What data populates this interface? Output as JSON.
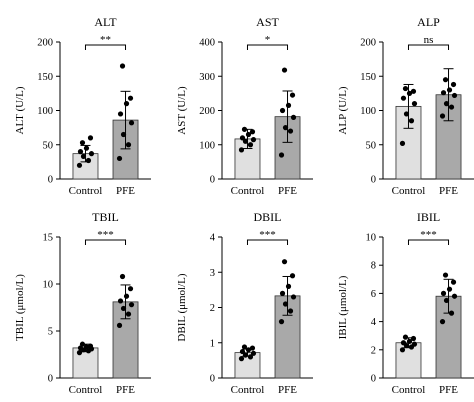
{
  "colors": {
    "control": "#e0e0e0",
    "pfe": "#a9a9a9"
  },
  "chart_data": [
    {
      "type": "bar",
      "title": "ALT",
      "ylabel": "ALT (U/L)",
      "ylim": [
        0,
        200
      ],
      "yticks": [
        0,
        50,
        100,
        150,
        200
      ],
      "categories": [
        "Control",
        "PFE"
      ],
      "means": [
        37,
        86
      ],
      "sd": [
        12,
        42
      ],
      "significance": "**",
      "points": [
        [
          20,
          27,
          33,
          37,
          40,
          45,
          60,
          53
        ],
        [
          30,
          50,
          65,
          82,
          95,
          110,
          118,
          165
        ]
      ]
    },
    {
      "type": "bar",
      "title": "AST",
      "ylabel": "AST (U/L)",
      "ylim": [
        0,
        400
      ],
      "yticks": [
        0,
        100,
        200,
        300,
        400
      ],
      "categories": [
        "Control",
        "PFE"
      ],
      "means": [
        117,
        182
      ],
      "sd": [
        28,
        75
      ],
      "significance": "*",
      "points": [
        [
          85,
          100,
          110,
          115,
          120,
          130,
          138,
          145
        ],
        [
          70,
          140,
          150,
          180,
          200,
          215,
          245,
          318
        ]
      ]
    },
    {
      "type": "bar",
      "title": "ALP",
      "ylabel": "ALP (U/L)",
      "ylim": [
        0,
        200
      ],
      "yticks": [
        0,
        50,
        100,
        150,
        200
      ],
      "categories": [
        "Control",
        "PFE"
      ],
      "means": [
        106,
        123
      ],
      "sd": [
        32,
        38
      ],
      "significance": "ns",
      "points": [
        [
          52,
          85,
          95,
          110,
          118,
          125,
          128,
          132
        ],
        [
          92,
          105,
          110,
          122,
          126,
          130,
          138,
          145
        ]
      ]
    },
    {
      "type": "bar",
      "title": "TBIL",
      "ylabel": "TBIL (μmol/L)",
      "ylim": [
        0,
        15
      ],
      "yticks": [
        0,
        5,
        10,
        15
      ],
      "categories": [
        "Control",
        "PFE"
      ],
      "means": [
        3.2,
        8.1
      ],
      "sd": [
        0.4,
        1.8
      ],
      "significance": "***",
      "points": [
        [
          2.7,
          2.9,
          3.0,
          3.1,
          3.2,
          3.3,
          3.4,
          3.6
        ],
        [
          5.6,
          6.8,
          7.4,
          7.8,
          8.2,
          8.7,
          9.5,
          10.8
        ]
      ]
    },
    {
      "type": "bar",
      "title": "DBIL",
      "ylabel": "DBIL (μmol/L)",
      "ylim": [
        0,
        4
      ],
      "yticks": [
        0,
        1,
        2,
        3,
        4
      ],
      "categories": [
        "Control",
        "PFE"
      ],
      "means": [
        0.72,
        2.33
      ],
      "sd": [
        0.1,
        0.55
      ],
      "significance": "***",
      "points": [
        [
          0.55,
          0.6,
          0.65,
          0.7,
          0.75,
          0.8,
          0.85,
          0.88
        ],
        [
          1.6,
          1.9,
          2.1,
          2.3,
          2.4,
          2.6,
          2.9,
          3.3
        ]
      ]
    },
    {
      "type": "bar",
      "title": "IBIL",
      "ylabel": "IBIL (μmol/L)",
      "ylim": [
        0,
        10
      ],
      "yticks": [
        0,
        2,
        4,
        6,
        8,
        10
      ],
      "categories": [
        "Control",
        "PFE"
      ],
      "means": [
        2.5,
        5.8
      ],
      "sd": [
        0.35,
        1.2
      ],
      "significance": "***",
      "points": [
        [
          2.0,
          2.2,
          2.3,
          2.4,
          2.5,
          2.6,
          2.8,
          2.9
        ],
        [
          4.0,
          4.6,
          5.5,
          5.8,
          6.0,
          6.3,
          6.8,
          7.3
        ]
      ]
    }
  ]
}
